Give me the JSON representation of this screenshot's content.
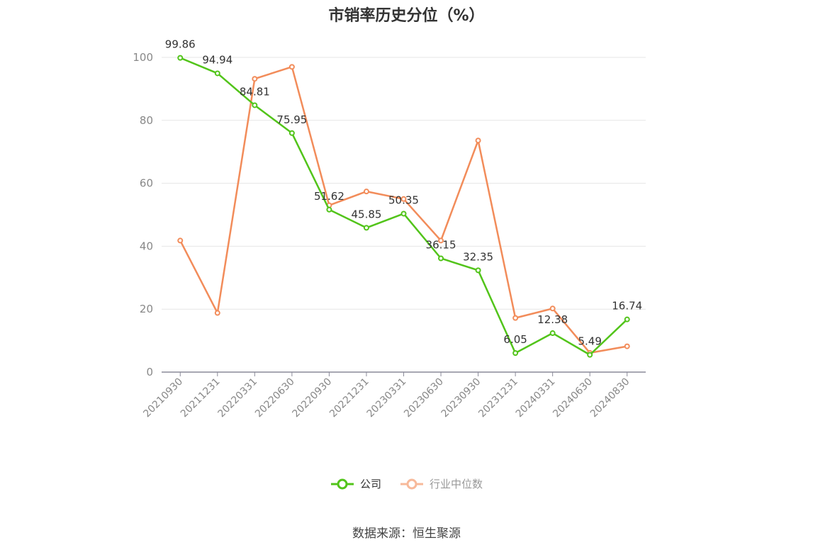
{
  "chart_data": {
    "type": "line",
    "title": "市销率历史分位（%）",
    "categories": [
      "20210930",
      "20211231",
      "20220331",
      "20220630",
      "20220930",
      "20221231",
      "20230331",
      "20230630",
      "20230930",
      "20231231",
      "20240331",
      "20240630",
      "20240830"
    ],
    "ylim": [
      0,
      100
    ],
    "yticks": [
      0,
      20,
      40,
      60,
      80,
      100
    ],
    "grid": true,
    "legend_position": "bottom",
    "series": [
      {
        "name": "公司",
        "color": "#52c41a",
        "values": [
          99.86,
          94.94,
          84.81,
          75.95,
          51.62,
          45.85,
          50.35,
          36.15,
          32.35,
          6.05,
          12.38,
          5.49,
          16.74
        ],
        "labels": [
          "99.86",
          "94.94",
          "84.81",
          "75.95",
          "51.62",
          "45.85",
          "50.35",
          "36.15",
          "32.35",
          "6.05",
          "12.38",
          "5.49",
          "16.74"
        ]
      },
      {
        "name": "行业中位数",
        "color": "#f28c5a",
        "values": [
          41.8,
          18.8,
          93.2,
          97.0,
          53.0,
          57.4,
          55.0,
          41.8,
          73.6,
          17.2,
          20.2,
          6.1,
          8.2
        ]
      }
    ]
  },
  "legend": {
    "company": "公司",
    "industry": "行业中位数"
  },
  "source": "数据来源：恒生聚源"
}
